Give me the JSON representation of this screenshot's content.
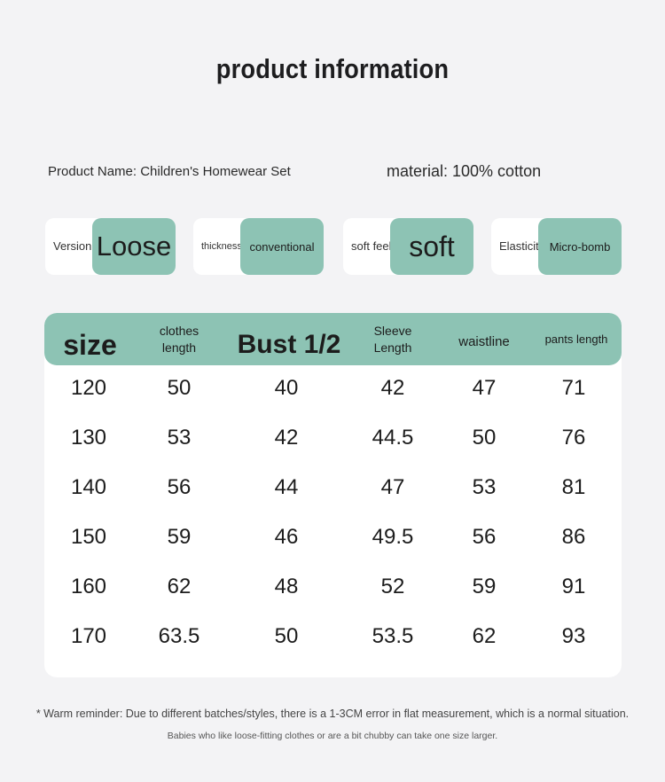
{
  "title": "product information",
  "product_name": "Product Name: Children's Homewear Set",
  "material": "material: 100% cotton",
  "attributes": [
    {
      "label": "Version",
      "value": "Loose"
    },
    {
      "label": "thickness",
      "value": "conventional"
    },
    {
      "label": "soft feel",
      "value": "soft"
    },
    {
      "label": "Elasticity",
      "value": "Micro-bomb"
    }
  ],
  "table": {
    "headers": [
      "size",
      "clothes length",
      "Bust 1/2",
      "Sleeve Length",
      "waistline",
      "pants length"
    ],
    "rows": [
      [
        "120",
        "50",
        "40",
        "42",
        "47",
        "71"
      ],
      [
        "130",
        "53",
        "42",
        "44.5",
        "50",
        "76"
      ],
      [
        "140",
        "56",
        "44",
        "47",
        "53",
        "81"
      ],
      [
        "150",
        "59",
        "46",
        "49.5",
        "56",
        "86"
      ],
      [
        "160",
        "62",
        "48",
        "52",
        "59",
        "91"
      ],
      [
        "170",
        "63.5",
        "50",
        "53.5",
        "62",
        "93"
      ]
    ]
  },
  "notes": {
    "reminder": "* Warm reminder: Due to different batches/styles, there is a 1-3CM error in flat measurement, which is a normal situation.",
    "tip": "Babies who like loose-fitting clothes or are a bit chubby can take one size larger."
  },
  "colors": {
    "accent": "#8dc3b4",
    "background": "#f3f3f5",
    "card": "#ffffff"
  }
}
